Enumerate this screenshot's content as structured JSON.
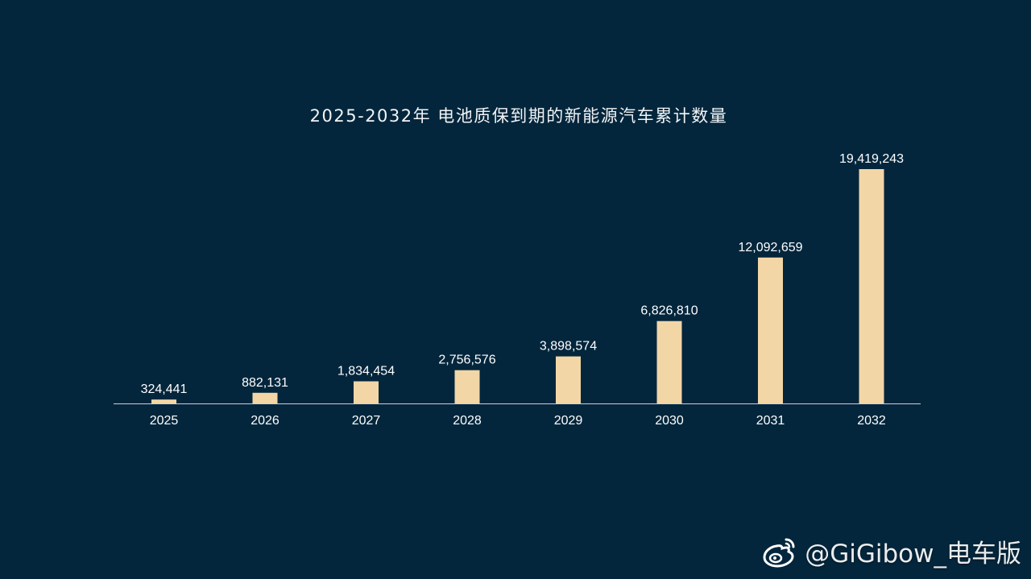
{
  "title": "2025-2032年 电池质保到期的新能源汽车累计数量",
  "watermark": {
    "icon": "weibo-icon",
    "text": "@GiGibow_电车版"
  },
  "colors": {
    "background": "#03263c",
    "bar": "#f3d6a6",
    "axis": "#c9d1d8",
    "text": "#ffffff"
  },
  "chart_data": {
    "type": "bar",
    "title": "2025-2032年 电池质保到期的新能源汽车累计数量",
    "categories": [
      "2025",
      "2026",
      "2027",
      "2028",
      "2029",
      "2030",
      "2031",
      "2032"
    ],
    "values": [
      324441,
      882131,
      1834454,
      2756576,
      3898574,
      6826810,
      12092659,
      19419243
    ],
    "value_labels": [
      "324,441",
      "882,131",
      "1,834,454",
      "2,756,576",
      "3,898,574",
      "6,826,810",
      "12,092,659",
      "19,419,243"
    ],
    "xlabel": "",
    "ylabel": "",
    "ylim": [
      0,
      19419243
    ],
    "grid": false,
    "legend": "none"
  }
}
